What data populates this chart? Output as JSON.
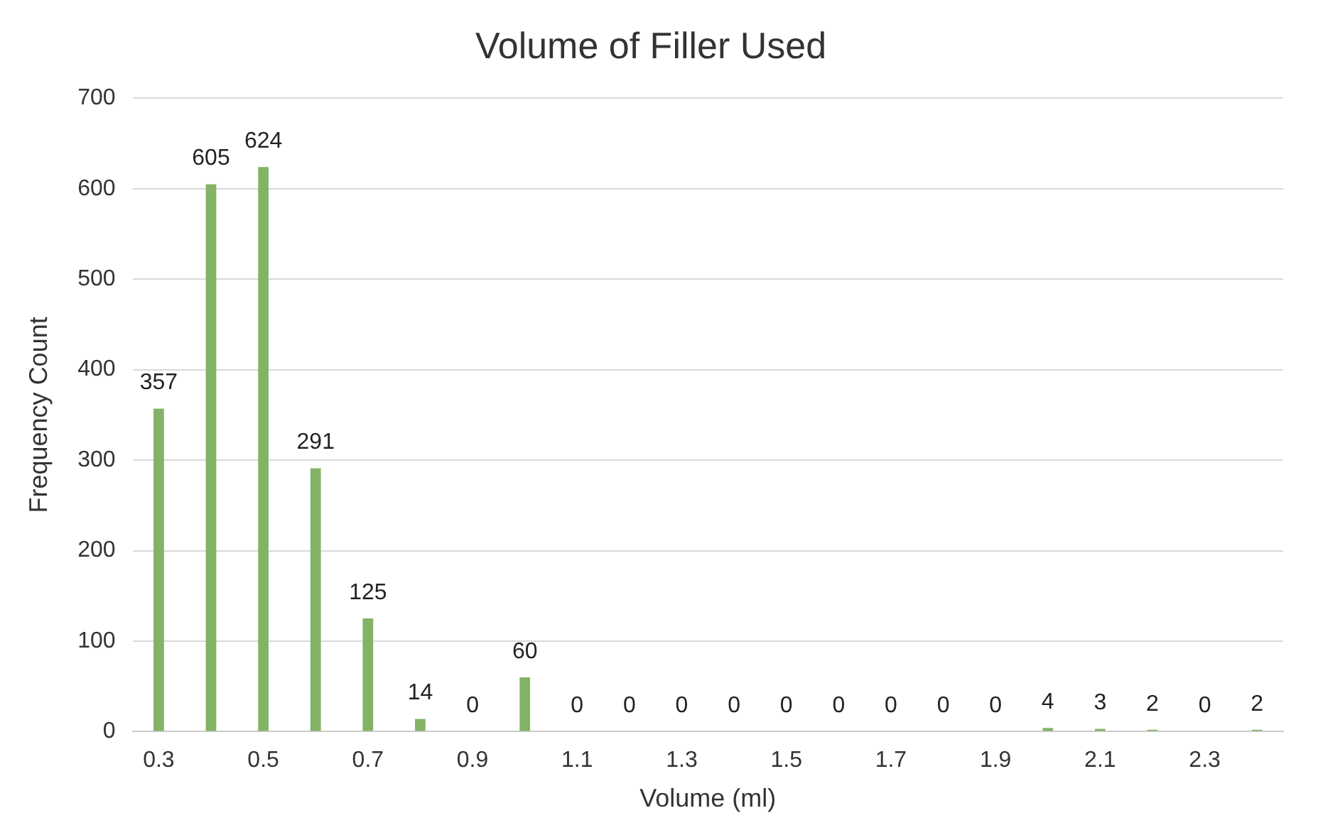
{
  "chart_data": {
    "type": "bar",
    "title": "Volume of Filler Used",
    "xlabel": "Volume (ml)",
    "ylabel": "Frequency Count",
    "categories": [
      "0.3",
      null,
      "0.5",
      null,
      "0.7",
      null,
      "0.9",
      null,
      "1.1",
      null,
      "1.3",
      null,
      "1.5",
      null,
      "1.7",
      null,
      "1.9",
      null,
      "2.1",
      null,
      "2.3",
      null
    ],
    "values": [
      357,
      605,
      624,
      291,
      125,
      14,
      0,
      60,
      0,
      0,
      0,
      0,
      0,
      0,
      0,
      0,
      0,
      4,
      3,
      2,
      0,
      2
    ],
    "color": "#82b366",
    "ylim": [
      0,
      700
    ],
    "yticks": [
      0,
      100,
      200,
      300,
      400,
      500,
      600,
      700
    ],
    "grid": "y",
    "data_labels": true,
    "legend": false
  }
}
